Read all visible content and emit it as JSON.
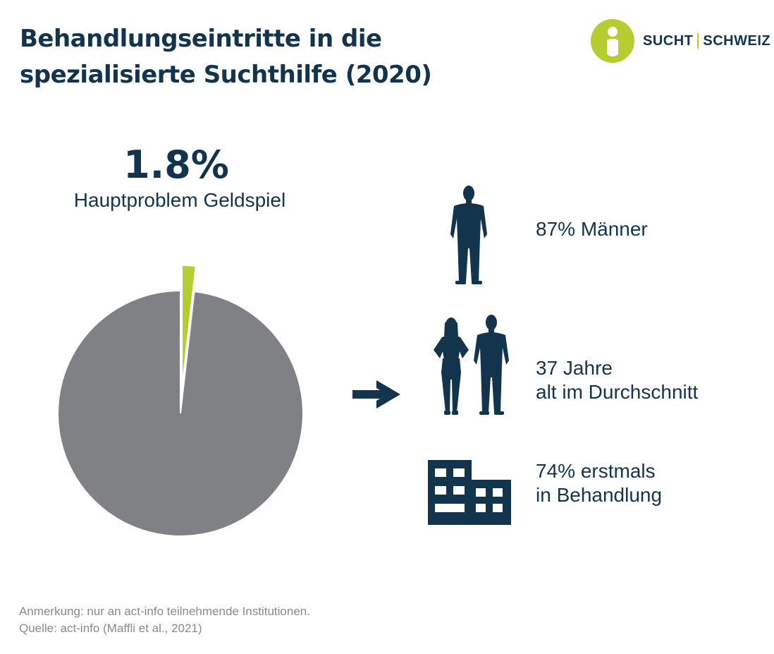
{
  "title_line1": "Behandlungseintritte in die",
  "title_line2": "spezialisierte Suchthilfe (2020)",
  "logo": {
    "left": "SUCHT",
    "right": "SCHWEIZ",
    "green": "#b5cd30",
    "navy": "#13344d"
  },
  "chart_data": {
    "type": "pie",
    "values": [
      1.8,
      98.2
    ],
    "value_label": "1.8%",
    "category_label": "Hauptproblem Geldspiel",
    "colors": [
      "#b5cd30",
      "#808184"
    ],
    "highlight_index": 0
  },
  "stats": [
    {
      "line1": "87% Männer",
      "line2": "",
      "icon": "man-silhouette-icon"
    },
    {
      "line1": "37 Jahre",
      "line2": "alt im Durchschnitt",
      "icon": "couple-silhouette-icon"
    },
    {
      "line1": "74% erstmals",
      "line2": "in Behandlung",
      "icon": "building-icon"
    }
  ],
  "notes": {
    "line1": "Anmerkung: nur an act-info teilnehmende Institutionen.",
    "line2": "Quelle: act-info (Maffli et al., 2021)"
  }
}
